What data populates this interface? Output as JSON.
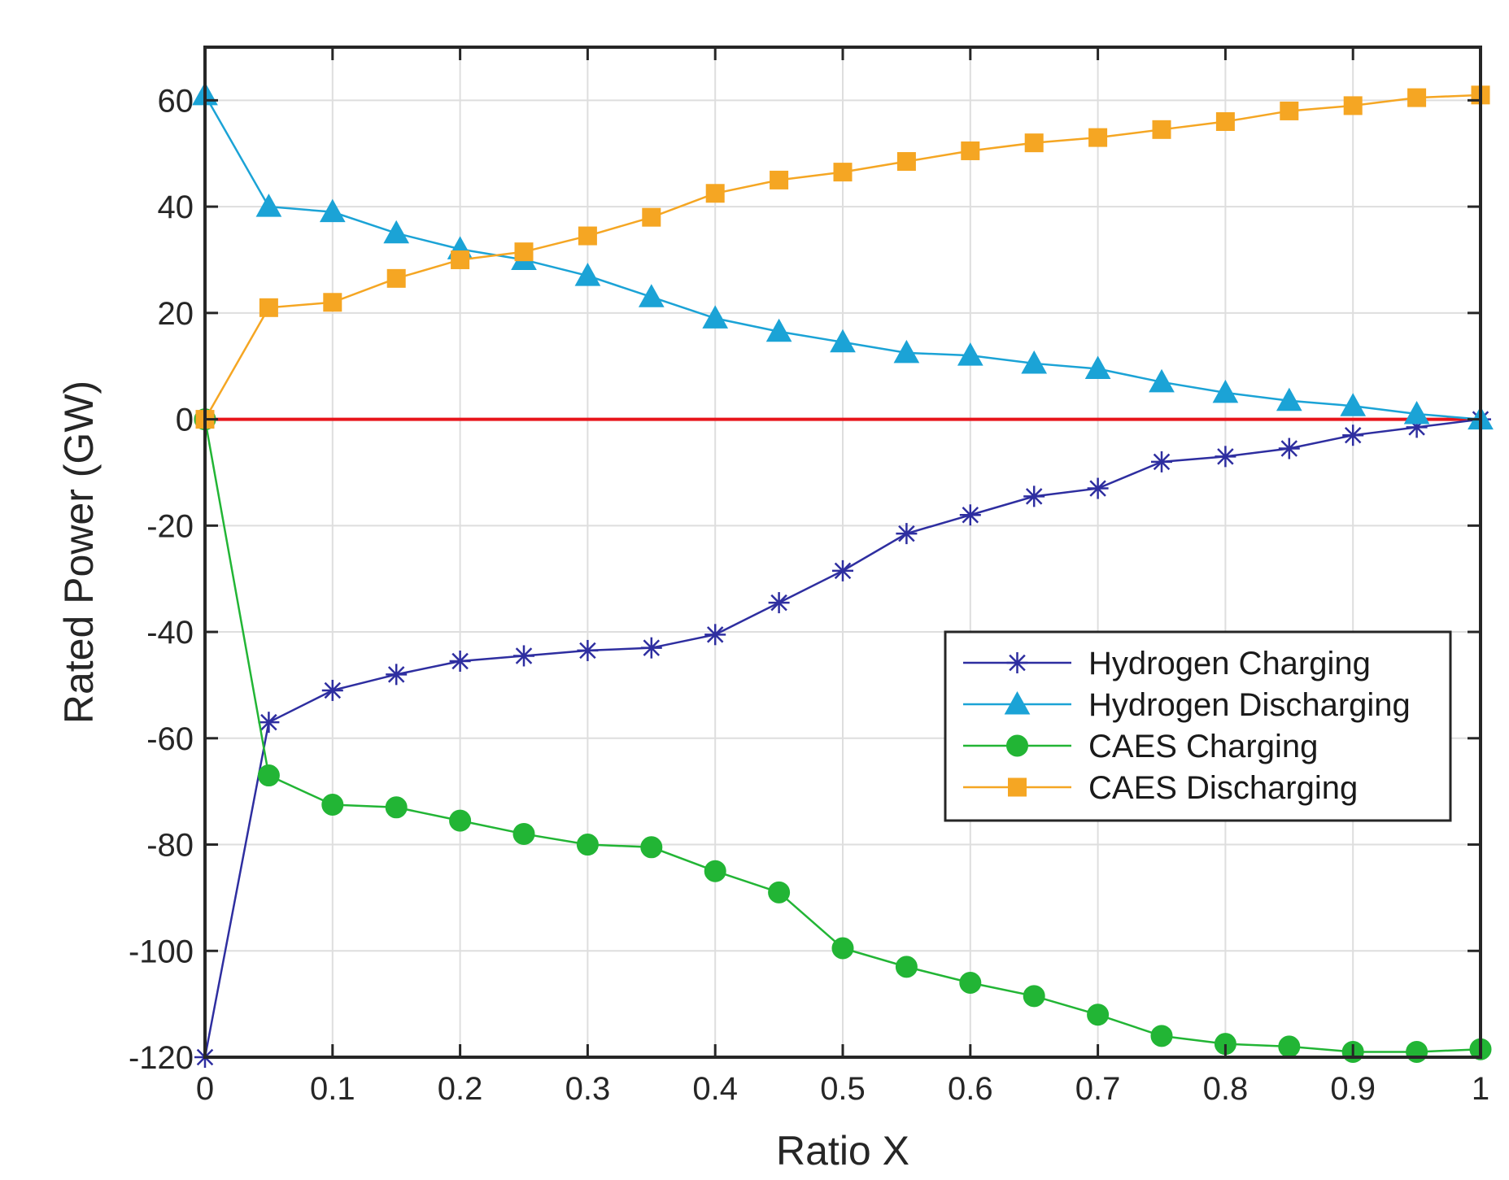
{
  "chart_data": {
    "type": "line",
    "title": "",
    "xlabel": "Ratio X",
    "ylabel": "Rated Power (GW)",
    "xlim": [
      0,
      1
    ],
    "ylim": [
      -120,
      70
    ],
    "xticks": [
      0,
      0.1,
      0.2,
      0.3,
      0.4,
      0.5,
      0.6,
      0.7,
      0.8,
      0.9,
      1
    ],
    "xtick_labels": [
      "0",
      "0.1",
      "0.2",
      "0.3",
      "0.4",
      "0.5",
      "0.6",
      "0.7",
      "0.8",
      "0.9",
      "1"
    ],
    "yticks": [
      -120,
      -100,
      -80,
      -60,
      -40,
      -20,
      0,
      20,
      40,
      60
    ],
    "ytick_labels": [
      "-120",
      "-100",
      "-80",
      "-60",
      "-40",
      "-20",
      "0",
      "20",
      "40",
      "60"
    ],
    "grid": true,
    "legend_position": "center-right",
    "x": [
      0,
      0.05,
      0.1,
      0.15,
      0.2,
      0.25,
      0.3,
      0.35,
      0.4,
      0.45,
      0.5,
      0.55,
      0.6,
      0.65,
      0.7,
      0.75,
      0.8,
      0.85,
      0.9,
      0.95,
      1
    ],
    "series": [
      {
        "name": "Hydrogen Charging",
        "color": "#2e2ea0",
        "marker": "asterisk",
        "values": [
          -120,
          -57,
          -51,
          -48,
          -45.5,
          -44.5,
          -43.5,
          -43,
          -40.5,
          -34.5,
          -28.5,
          -21.5,
          -18,
          -14.5,
          -13,
          -8,
          -7,
          -5.5,
          -3,
          -1.5,
          0
        ]
      },
      {
        "name": "Hydrogen Discharging",
        "color": "#1ba3d6",
        "marker": "triangle",
        "values": [
          61,
          40,
          39,
          35,
          32,
          30,
          27,
          23,
          19,
          16.5,
          14.5,
          12.5,
          12,
          10.5,
          9.5,
          7,
          5,
          3.5,
          2.5,
          1,
          0
        ]
      },
      {
        "name": "CAES Charging",
        "color": "#22b535",
        "marker": "circle",
        "values": [
          0,
          -67,
          -72.5,
          -73,
          -75.5,
          -78,
          -80,
          -80.5,
          -85,
          -89,
          -99.5,
          -103,
          -106,
          -108.5,
          -112,
          -116,
          -117.5,
          -118,
          -119,
          -119,
          -118.5
        ]
      },
      {
        "name": "CAES Discharging",
        "color": "#f5a623",
        "marker": "square",
        "values": [
          0,
          21,
          22,
          26.5,
          30,
          31.5,
          34.5,
          38,
          42.5,
          45,
          46.5,
          48.5,
          50.5,
          52,
          53,
          54.5,
          56,
          58,
          59,
          60.5,
          61
        ]
      }
    ],
    "reference_line": {
      "y": 0,
      "color": "#e8151b"
    }
  }
}
